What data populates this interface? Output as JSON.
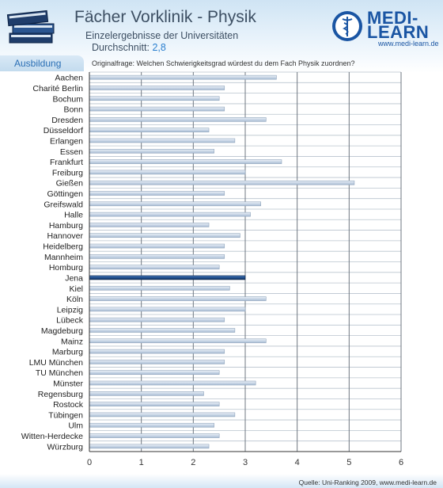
{
  "header": {
    "title": "Fächer Vorklinik - Physik",
    "subtitle": "Einzelergebnisse der Universitäten",
    "average_label": "Durchschnitt:",
    "average_value": "2,8",
    "section_tab": "Ausbildung",
    "question": "Originalfrage: Welchen Schwierigkeitsgrad würdest du dem Fach Physik zuordnen?"
  },
  "logo": {
    "line1": "MEDI-",
    "line2": "LEARN",
    "url": "www.medi-learn.de"
  },
  "footer": {
    "source": "Quelle: Uni-Ranking 2009, www.medi-learn.de"
  },
  "colors": {
    "bar": "#c9d6e6",
    "bar_edge": "#8ea3bb",
    "highlight_bar": "#1f4e8c",
    "brand": "#1a55a3"
  },
  "chart_data": {
    "type": "bar",
    "orientation": "horizontal",
    "title": "Fächer Vorklinik - Physik",
    "categories": [
      "Aachen",
      "Charité Berlin",
      "Bochum",
      "Bonn",
      "Dresden",
      "Düsseldorf",
      "Erlangen",
      "Essen",
      "Frankfurt",
      "Freiburg",
      "Gießen",
      "Göttingen",
      "Greifswald",
      "Halle",
      "Hamburg",
      "Hannover",
      "Heidelberg",
      "Mannheim",
      "Homburg",
      "Jena",
      "Kiel",
      "Köln",
      "Leipzig",
      "Lübeck",
      "Magdeburg",
      "Mainz",
      "Marburg",
      "LMU München",
      "TU München",
      "Münster",
      "Regensburg",
      "Rostock",
      "Tübingen",
      "Ulm",
      "Witten-Herdecke",
      "Würzburg"
    ],
    "values": [
      3.6,
      2.6,
      2.5,
      2.6,
      3.4,
      2.3,
      2.8,
      2.4,
      3.7,
      3.0,
      5.1,
      2.6,
      3.3,
      3.1,
      2.3,
      2.9,
      2.6,
      2.6,
      2.5,
      3.0,
      2.7,
      3.4,
      3.0,
      2.6,
      2.8,
      3.4,
      2.6,
      2.6,
      2.5,
      3.2,
      2.2,
      2.5,
      2.8,
      2.4,
      2.5,
      2.3
    ],
    "highlight": "Jena",
    "xlim": [
      0,
      6
    ],
    "xticks": [
      "0",
      "1",
      "2",
      "3",
      "4",
      "5",
      "6"
    ],
    "grid": true
  }
}
